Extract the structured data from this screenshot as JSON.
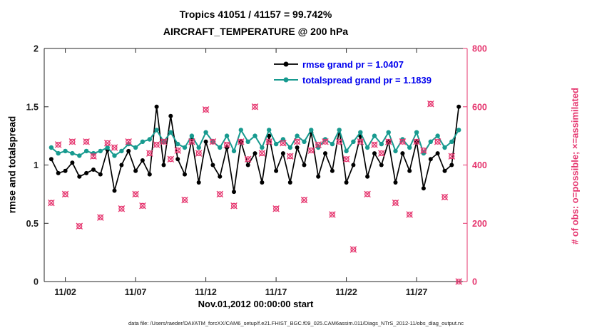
{
  "title": {
    "line1": "Tropics 41051 / 41157 = 99.742%",
    "line2": "AIRCRAFT_TEMPERATURE @ 200 hPa"
  },
  "legend": {
    "rmse_label": "rmse grand pr = 1.0407",
    "totalspread_label": "totalspread grand pr = 1.1839"
  },
  "footer": "data file: /Users/raeder/DAI/ATM_forcXX/CAM6_setup/f.e21.FHIST_BGC.f09_025.CAM6assim.011/Diags_NTrS_2012-11/obs_diag_output.nc",
  "colors": {
    "rmse": "#000000",
    "totalspread": "#179a8f",
    "obs": "#e5356e",
    "legend_text": "#0000ee",
    "axis": "#262626",
    "text": "#1a1a1a"
  },
  "chart_data": {
    "type": "line",
    "title": "Tropics 41051 / 41157 = 99.742% — AIRCRAFT_TEMPERATURE @ 200 hPa",
    "xlabel": "Nov.01,2012 00:00:00 start",
    "ylabel_left": "rmse and totalspread",
    "ylabel_right": "# of obs: o=possible; ×=assimilated",
    "xlim": [
      0.5,
      30.6
    ],
    "ylim_left": [
      0,
      2
    ],
    "ylim_right": [
      0,
      800
    ],
    "legend_position": "top-center-inside",
    "grid": false,
    "xticks": [
      {
        "v": 2,
        "label": "11/02"
      },
      {
        "v": 7,
        "label": "11/07"
      },
      {
        "v": 12,
        "label": "11/12"
      },
      {
        "v": 17,
        "label": "11/17"
      },
      {
        "v": 22,
        "label": "11/22"
      },
      {
        "v": 27,
        "label": "11/27"
      }
    ],
    "yticks_left": [
      {
        "v": 0,
        "label": "0"
      },
      {
        "v": 0.5,
        "label": "0.5"
      },
      {
        "v": 1,
        "label": "1"
      },
      {
        "v": 1.5,
        "label": "1.5"
      },
      {
        "v": 2,
        "label": "2"
      }
    ],
    "yticks_right": [
      {
        "v": 0,
        "label": "0"
      },
      {
        "v": 200,
        "label": "200"
      },
      {
        "v": 400,
        "label": "400"
      },
      {
        "v": 600,
        "label": "600"
      },
      {
        "v": 800,
        "label": "800"
      }
    ],
    "x_days_nov2012": [
      1,
      1.5,
      2,
      2.5,
      3,
      3.5,
      4,
      4.5,
      5,
      5.5,
      6,
      6.5,
      7,
      7.5,
      8,
      8.5,
      9,
      9.5,
      10,
      10.5,
      11,
      11.5,
      12,
      12.5,
      13,
      13.5,
      14,
      14.5,
      15,
      15.5,
      16,
      16.5,
      17,
      17.5,
      18,
      18.5,
      19,
      19.5,
      20,
      20.5,
      21,
      21.5,
      22,
      22.5,
      23,
      23.5,
      24,
      24.5,
      25,
      25.5,
      26,
      26.5,
      27,
      27.5,
      28,
      28.5,
      29,
      29.5,
      30
    ],
    "series": [
      {
        "name": "rmse",
        "grand_pr": 1.0407,
        "axis": "left",
        "type": "line",
        "color_key": "rmse",
        "values": [
          1.05,
          0.93,
          0.95,
          1.02,
          0.9,
          0.93,
          0.96,
          0.92,
          1.13,
          0.78,
          1.0,
          1.12,
          0.95,
          1.04,
          0.92,
          1.5,
          1.0,
          1.42,
          1.05,
          0.92,
          1.22,
          0.85,
          1.2,
          1.0,
          0.9,
          1.15,
          0.77,
          1.2,
          1.0,
          1.1,
          0.85,
          1.25,
          0.95,
          1.1,
          0.85,
          1.15,
          1.0,
          1.28,
          0.9,
          1.1,
          0.95,
          1.3,
          0.85,
          1.0,
          1.25,
          0.9,
          1.1,
          1.0,
          1.2,
          0.85,
          1.1,
          0.95,
          1.2,
          0.8,
          1.05,
          1.1,
          0.95,
          1.0,
          1.5
        ]
      },
      {
        "name": "totalspread",
        "grand_pr": 1.1839,
        "axis": "left",
        "type": "line",
        "color_key": "totalspread",
        "values": [
          1.15,
          1.1,
          1.12,
          1.1,
          1.08,
          1.12,
          1.1,
          1.12,
          1.15,
          1.08,
          1.12,
          1.18,
          1.15,
          1.2,
          1.22,
          1.3,
          1.2,
          1.28,
          1.18,
          1.15,
          1.25,
          1.15,
          1.28,
          1.2,
          1.15,
          1.25,
          1.12,
          1.3,
          1.2,
          1.25,
          1.15,
          1.3,
          1.18,
          1.22,
          1.15,
          1.25,
          1.2,
          1.3,
          1.15,
          1.22,
          1.18,
          1.3,
          1.12,
          1.2,
          1.28,
          1.15,
          1.25,
          1.18,
          1.28,
          1.12,
          1.22,
          1.15,
          1.28,
          1.1,
          1.2,
          1.25,
          1.15,
          1.2,
          1.3
        ]
      },
      {
        "name": "num_obs_possible_assimilated",
        "axis": "right",
        "type": "scatter",
        "marker": "circle-plus-x-overlay",
        "color_key": "obs",
        "values": [
          270,
          470,
          300,
          480,
          190,
          480,
          430,
          220,
          475,
          460,
          250,
          480,
          300,
          260,
          440,
          470,
          480,
          420,
          450,
          280,
          480,
          440,
          590,
          480,
          300,
          470,
          260,
          480,
          420,
          600,
          440,
          480,
          250,
          475,
          430,
          480,
          280,
          450,
          470,
          480,
          230,
          480,
          420,
          110,
          480,
          300,
          470,
          440,
          480,
          270,
          480,
          230,
          480,
          450,
          610,
          480,
          290,
          430,
          0
        ]
      }
    ]
  }
}
